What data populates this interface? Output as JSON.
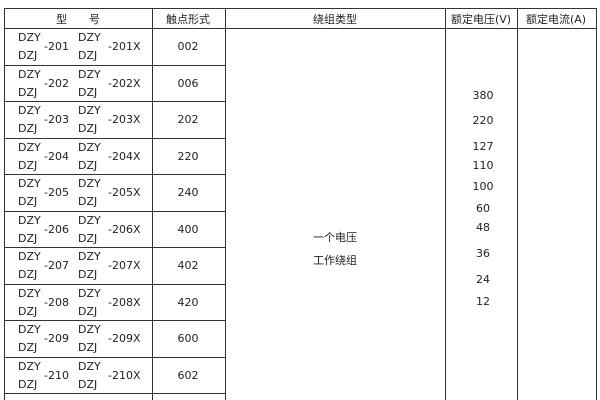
{
  "headers": {
    "model": "型　　号",
    "contact": "触点形式",
    "winding": "绕组类型",
    "voltage": "额定电压(V)",
    "current": "额定电流(A)"
  },
  "rows": [
    {
      "p1": "DZY",
      "p2": "DZJ",
      "num": "-201",
      "q1": "DZY",
      "q2": "DZJ",
      "numx": "-201X",
      "contact": "002"
    },
    {
      "p1": "DZY",
      "p2": "DZJ",
      "num": "-202",
      "q1": "DZY",
      "q2": "DZJ",
      "numx": "-202X",
      "contact": "006"
    },
    {
      "p1": "DZY",
      "p2": "DZJ",
      "num": "-203",
      "q1": "DZY",
      "q2": "DZJ",
      "numx": "-203X",
      "contact": "202"
    },
    {
      "p1": "DZY",
      "p2": "DZJ",
      "num": "-204",
      "q1": "DZY",
      "q2": "DZJ",
      "numx": "-204X",
      "contact": "220"
    },
    {
      "p1": "DZY",
      "p2": "DZJ",
      "num": "-205",
      "q1": "DZY",
      "q2": "DZJ",
      "numx": "-205X",
      "contact": "240"
    },
    {
      "p1": "DZY",
      "p2": "DZJ",
      "num": "-206",
      "q1": "DZY",
      "q2": "DZJ",
      "numx": "-206X",
      "contact": "400"
    },
    {
      "p1": "DZY",
      "p2": "DZJ",
      "num": "-207",
      "q1": "DZY",
      "q2": "DZJ",
      "numx": "-207X",
      "contact": "402"
    },
    {
      "p1": "DZY",
      "p2": "DZJ",
      "num": "-208",
      "q1": "DZY",
      "q2": "DZJ",
      "numx": "-208X",
      "contact": "420"
    },
    {
      "p1": "DZY",
      "p2": "DZJ",
      "num": "-209",
      "q1": "DZY",
      "q2": "DZJ",
      "numx": "-209X",
      "contact": "600"
    },
    {
      "p1": "DZY",
      "p2": "DZJ",
      "num": "-210",
      "q1": "DZY",
      "q2": "DZJ",
      "numx": "-210X",
      "contact": "602"
    }
  ],
  "winding": [
    "一个电压",
    "工作绕组"
  ],
  "voltages": [
    "380",
    "220",
    "127",
    "110",
    "100",
    "60",
    "48",
    "36",
    "24",
    "12"
  ]
}
